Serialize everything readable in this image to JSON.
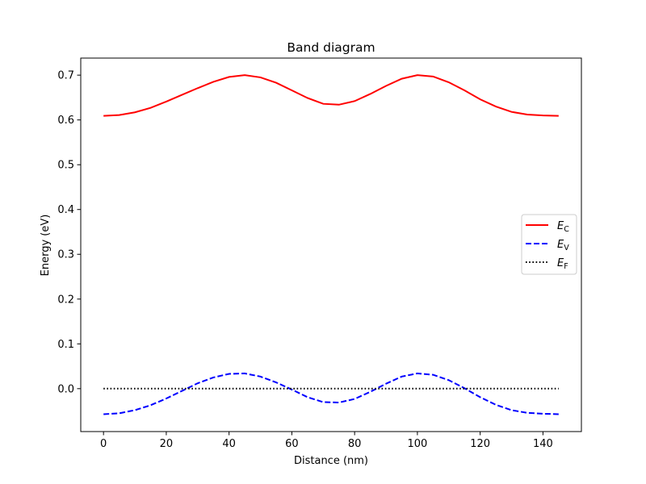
{
  "chart_data": {
    "type": "line",
    "title": "Band diagram",
    "xlabel": "Distance (nm)",
    "ylabel": "Energy (eV)",
    "xlim": [
      -7.25,
      152.25
    ],
    "ylim": [
      -0.0958,
      0.7381
    ],
    "xticks": [
      0,
      20,
      40,
      60,
      80,
      100,
      120,
      140
    ],
    "yticks": [
      0.0,
      0.1,
      0.2,
      0.3,
      0.4,
      0.5,
      0.6,
      0.7
    ],
    "ytick_labels": [
      "0.0",
      "0.1",
      "0.2",
      "0.3",
      "0.4",
      "0.5",
      "0.6",
      "0.7"
    ],
    "grid": false,
    "legend_position": "right",
    "series": [
      {
        "name": "E",
        "subscript": "C",
        "color": "#ff0000",
        "linestyle": "solid",
        "x": [
          0,
          5,
          10,
          15,
          20,
          25,
          30,
          35,
          40,
          45,
          50,
          55,
          60,
          65,
          70,
          75,
          80,
          85,
          90,
          95,
          100,
          105,
          110,
          115,
          120,
          125,
          130,
          135,
          140,
          145
        ],
        "y": [
          0.609,
          0.611,
          0.617,
          0.627,
          0.641,
          0.656,
          0.671,
          0.685,
          0.696,
          0.7,
          0.695,
          0.683,
          0.666,
          0.649,
          0.636,
          0.634,
          0.642,
          0.658,
          0.676,
          0.692,
          0.7,
          0.697,
          0.684,
          0.666,
          0.646,
          0.63,
          0.618,
          0.612,
          0.61,
          0.609
        ]
      },
      {
        "name": "E",
        "subscript": "V",
        "color": "#0000ff",
        "linestyle": "dashed",
        "x": [
          0,
          5,
          10,
          15,
          20,
          25,
          30,
          35,
          40,
          45,
          50,
          55,
          60,
          65,
          70,
          75,
          80,
          85,
          90,
          95,
          100,
          105,
          110,
          115,
          120,
          125,
          130,
          135,
          140,
          145
        ],
        "y": [
          -0.057,
          -0.055,
          -0.048,
          -0.037,
          -0.022,
          -0.005,
          0.012,
          0.025,
          0.033,
          0.034,
          0.027,
          0.014,
          -0.002,
          -0.019,
          -0.03,
          -0.031,
          -0.023,
          -0.007,
          0.011,
          0.027,
          0.034,
          0.031,
          0.019,
          0.001,
          -0.019,
          -0.036,
          -0.048,
          -0.054,
          -0.056,
          -0.057
        ]
      },
      {
        "name": "E",
        "subscript": "F",
        "color": "#000000",
        "linestyle": "dotted",
        "x": [
          0,
          145
        ],
        "y": [
          0.0,
          0.0
        ]
      }
    ]
  }
}
